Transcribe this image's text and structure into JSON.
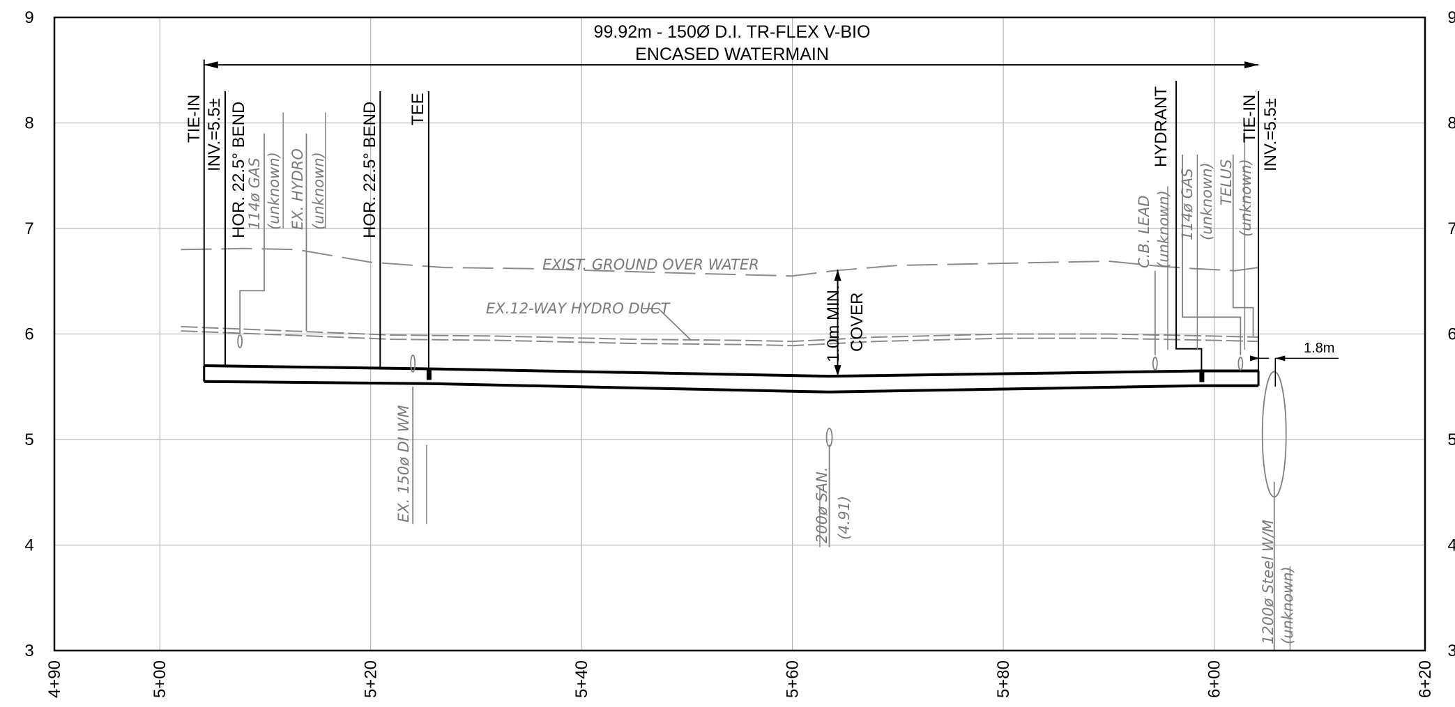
{
  "chart_data": {
    "type": "profile",
    "xlim": [
      490,
      620
    ],
    "ylim": [
      3,
      9
    ],
    "y_ticks": [
      "3",
      "4",
      "5",
      "6",
      "7",
      "8",
      "9"
    ],
    "x_ticks": [
      {
        "value": 490,
        "label": "4+90"
      },
      {
        "value": 500,
        "label": "5+00"
      },
      {
        "value": 520,
        "label": "5+20"
      },
      {
        "value": 540,
        "label": "5+40"
      },
      {
        "value": 560,
        "label": "5+60"
      },
      {
        "value": 580,
        "label": "5+80"
      },
      {
        "value": 600,
        "label": "6+00"
      },
      {
        "value": 620,
        "label": "6+20"
      }
    ],
    "x_grid": [
      500,
      520,
      540,
      560,
      580,
      600
    ],
    "y_grid": [
      4,
      5,
      6,
      7,
      8
    ],
    "title_lines": [
      "99.92m - 150Ø D.I. TR-FLEX V-BIO",
      "ENCASED WATERMAIN"
    ],
    "dimension": {
      "from": 504.2,
      "to": 604.2,
      "y": 8.55
    },
    "ground_line": {
      "label": "EXIST. GROUND OVER WATER",
      "points": [
        [
          502,
          6.8
        ],
        [
          508,
          6.81
        ],
        [
          513,
          6.8
        ],
        [
          520,
          6.68
        ],
        [
          527,
          6.63
        ],
        [
          535,
          6.62
        ],
        [
          545,
          6.59
        ],
        [
          552,
          6.57
        ],
        [
          556,
          6.56
        ],
        [
          560,
          6.55
        ],
        [
          564,
          6.6
        ],
        [
          570,
          6.65
        ],
        [
          580,
          6.67
        ],
        [
          590,
          6.69
        ],
        [
          595,
          6.64
        ],
        [
          598,
          6.62
        ],
        [
          602,
          6.6
        ],
        [
          604.2,
          6.63
        ]
      ]
    },
    "hydro_duct": {
      "label": "EX.12-WAY HYDRO DUCT",
      "points": [
        [
          502,
          6.07
        ],
        [
          512,
          6.03
        ],
        [
          522,
          5.99
        ],
        [
          532,
          5.98
        ],
        [
          545,
          5.95
        ],
        [
          555,
          5.94
        ],
        [
          560,
          5.93
        ],
        [
          568,
          5.97
        ],
        [
          580,
          6.0
        ],
        [
          590,
          6.0
        ],
        [
          600,
          5.98
        ],
        [
          604.2,
          5.97
        ]
      ]
    },
    "pipe": {
      "top": [
        [
          504.2,
          5.7
        ],
        [
          525.5,
          5.67
        ],
        [
          563.5,
          5.6
        ],
        [
          598.8,
          5.65
        ],
        [
          604.2,
          5.65
        ]
      ],
      "bottom": [
        [
          504.2,
          5.55
        ],
        [
          525.5,
          5.53
        ],
        [
          563.5,
          5.45
        ],
        [
          598.8,
          5.51
        ],
        [
          604.2,
          5.51
        ]
      ]
    },
    "fittings": [
      {
        "name": "TIE-IN",
        "x": 504.2,
        "label": "TIE-IN"
      },
      {
        "name": "HOR. 22.5° BEND",
        "x": 506.2,
        "label": "HOR. 22.5° BEND"
      },
      {
        "name": "HOR. 22.5° BEND",
        "x": 520.9,
        "label": "HOR. 22.5° BEND"
      },
      {
        "name": "TEE",
        "x": 525.5,
        "label": "TEE"
      },
      {
        "name": "HYDRANT",
        "x": 596.4,
        "label": "HYDRANT"
      },
      {
        "name": "TIE-IN",
        "x": 604.2,
        "label": "TIE-IN"
      }
    ],
    "labels": {
      "inv_left": "INV.=5.5±",
      "inv_right": "INV.=5.5±",
      "gas_left": "114ø GAS",
      "gas_left_sub": "(unknown)",
      "hydro": "EX. HYDRO",
      "hydro_sub": "(unknown)",
      "cb_lead": "C.B. LEAD",
      "cb_lead_sub": "(unknown)",
      "gas_right": "114ø GAS",
      "gas_right_sub": "(unknown)",
      "telus": "TELUS",
      "telus_sub": "(unknown)",
      "di_wm": "EX. 150ø DI WM",
      "san": "200ø SAN.",
      "san_sub": "(4.91)",
      "cover_1": "1.0m MIN.",
      "cover_2": "COVER",
      "steel": "1200ø Steel W/M",
      "steel_sub": "(unknown)",
      "offset": "1.8m"
    },
    "utilities": [
      {
        "name": "114ø GAS",
        "x": 507.6,
        "y": 5.93
      },
      {
        "name": "EX. 150ø DI WM",
        "x": 524.0,
        "y": 5.72
      },
      {
        "name": "200ø SAN.",
        "x": 563.5,
        "y": 5.02
      },
      {
        "name": "C.B. LEAD",
        "x": 594.4,
        "y": 5.72
      },
      {
        "name": "114ø GAS",
        "x": 602.5,
        "y": 5.72
      },
      {
        "name": "1200ø Steel W/M",
        "x": 605.7,
        "y": 5.05
      }
    ]
  }
}
